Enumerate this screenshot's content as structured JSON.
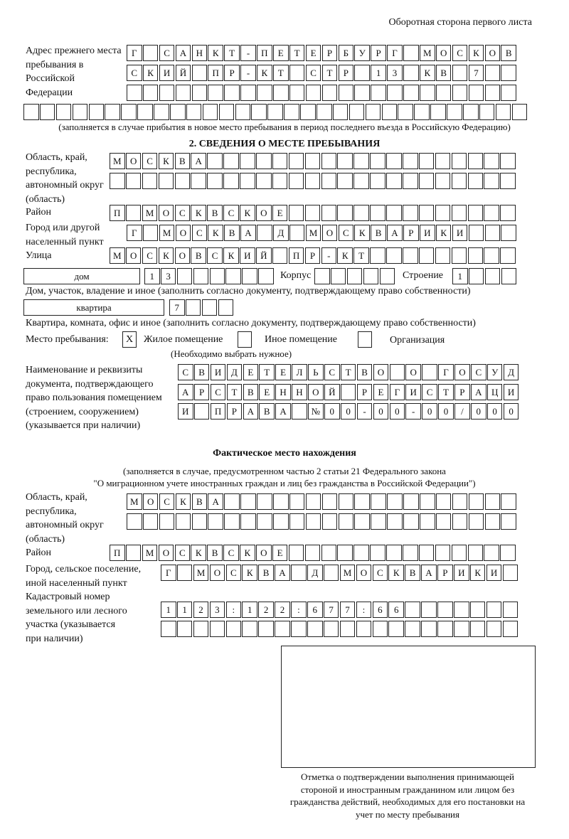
{
  "header": {
    "page_side": "Оборотная сторона первого листа"
  },
  "previous_address": {
    "label": "Адрес прежнего места пребывания в Российской Федерации",
    "rows": [
      [
        "Г",
        "",
        "С",
        "А",
        "Н",
        "К",
        "Т",
        "-",
        "П",
        "Е",
        "Т",
        "Е",
        "Р",
        "Б",
        "У",
        "Р",
        "Г",
        "",
        "М",
        "О",
        "С",
        "К",
        "О",
        "В"
      ],
      [
        "С",
        "К",
        "И",
        "Й",
        "",
        "П",
        "Р",
        "-",
        "К",
        "Т",
        "",
        "С",
        "Т",
        "Р",
        "",
        "1",
        "3",
        "",
        "К",
        "В",
        "",
        "7"
      ],
      [],
      []
    ],
    "note": "(заполняется в случае прибытия в новое место пребывания в период последнего въезда в Российскую Федерацию)"
  },
  "section2": {
    "title": "2. СВЕДЕНИЯ О МЕСТЕ ПРЕБЫВАНИЯ",
    "region_label": "Область, край, республика, автономный округ (область)",
    "region_rows": [
      [
        "М",
        "О",
        "С",
        "К",
        "В",
        "А"
      ],
      []
    ],
    "district_label": "Район",
    "district": [
      "П",
      "",
      "М",
      "О",
      "С",
      "К",
      "В",
      "С",
      "К",
      "О",
      "Е"
    ],
    "city_label": "Город или другой населенный пункт",
    "city": [
      "Г",
      "",
      "М",
      "О",
      "С",
      "К",
      "В",
      "А",
      "",
      "Д",
      "",
      "М",
      "О",
      "С",
      "К",
      "В",
      "А",
      "Р",
      "И",
      "К",
      "И"
    ],
    "street_label": "Улица",
    "street": [
      "М",
      "О",
      "С",
      "К",
      "О",
      "В",
      "С",
      "К",
      "И",
      "Й",
      "",
      "П",
      "Р",
      "-",
      "К",
      "Т"
    ],
    "house_type": "дом",
    "house": [
      "1",
      "3"
    ],
    "korpus_label": "Корпус",
    "korpus": [],
    "building_label": "Строение",
    "building": [
      "1"
    ],
    "house_note": "Дом, участок, владение и иное (заполнить согласно документу, подтверждающему право собственности)",
    "apartment_type": "квартира",
    "apartment": [
      "7"
    ],
    "apartment_note": "Квартира, комната, офис и иное (заполнить согласно документу, подтверждающему право собственности)",
    "stay_place_label": "Место пребывания:",
    "stay_options": [
      {
        "label": "Жилое помещение",
        "mark": "X",
        "checked": true
      },
      {
        "label": "Иное помещение",
        "mark": "",
        "checked": false
      },
      {
        "label": "Организация",
        "mark": "",
        "checked": false
      }
    ],
    "choose_note": "(Необходимо выбрать нужное)",
    "doc_label": "Наименование и реквизиты документа, подтверждающего право пользования помещением (строением, сооружением) (указывается при наличии)",
    "doc_rows": [
      [
        "С",
        "В",
        "И",
        "Д",
        "Е",
        "Т",
        "Е",
        "Л",
        "Ь",
        "С",
        "Т",
        "В",
        "О",
        "",
        "О",
        "",
        "Г",
        "О",
        "С",
        "У",
        "Д"
      ],
      [
        "А",
        "Р",
        "С",
        "Т",
        "В",
        "Е",
        "Н",
        "Н",
        "О",
        "Й",
        "",
        "Р",
        "Е",
        "Г",
        "И",
        "С",
        "Т",
        "Р",
        "А",
        "Ц",
        "И"
      ],
      [
        "И",
        "",
        "П",
        "Р",
        "А",
        "В",
        "А",
        "",
        "№",
        "0",
        "0",
        "-",
        "0",
        "0",
        "-",
        "0",
        "0",
        "/",
        "0",
        "0",
        "0"
      ]
    ]
  },
  "actual": {
    "title": "Фактическое место нахождения",
    "note1": "(заполняется в случае, предусмотренном частью 2 статьи 21 Федерального закона",
    "note2": "\"О миграционном учете иностранных граждан и лиц без гражданства в Российской Федерации\")",
    "region_label": "Область, край, республика, автономный округ (область)",
    "region_rows": [
      [
        "М",
        "О",
        "С",
        "К",
        "В",
        "А"
      ],
      []
    ],
    "district_label": "Район",
    "district": [
      "П",
      "",
      "М",
      "О",
      "С",
      "К",
      "В",
      "С",
      "К",
      "О",
      "Е"
    ],
    "city_label": "Город, сельское поселение, иной населенный пункт",
    "city": [
      "Г",
      "",
      "М",
      "О",
      "С",
      "К",
      "В",
      "А",
      "",
      "Д",
      "",
      "М",
      "О",
      "С",
      "К",
      "В",
      "А",
      "Р",
      "И",
      "К",
      "И"
    ],
    "cadastral_label": "Кадастровый номер земельного или лесного участка (указывается при наличии)",
    "cadastral_rows": [
      [
        "1",
        "1",
        "2",
        "3",
        ":",
        "1",
        "2",
        "2",
        ":",
        "6",
        "7",
        "7",
        ":",
        "6",
        "6"
      ],
      []
    ]
  },
  "confirmation": {
    "caption": "Отметка о подтверждении выполнения принимающей стороной и иностранным гражданином или лицом без гражданства действий, необходимых для его постановки на учет по месту пребывания"
  }
}
